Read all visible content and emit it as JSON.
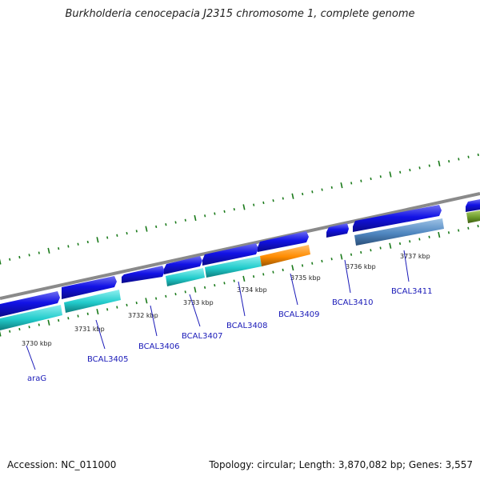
{
  "title": "Burkholderia cenocepacia J2315 chromosome 1, complete genome",
  "accession": "Accession: NC_011000",
  "summary": "Topology: circular; Length: 3,870,082 bp; Genes: 3,557",
  "colors": {
    "backbone": "#8a8a8a",
    "gene_forward": "#1010e0",
    "gene_cds": "#22cccc",
    "gene_highlight": "#ff8c00",
    "gene_alt": "#4f86c0",
    "gene_partial": "#6b9a2a",
    "tick": "#1a7a1a",
    "label": "#1a1ab8"
  },
  "scale_ticks": [
    {
      "label": "3730 kbp",
      "kbp": 3730
    },
    {
      "label": "3731 kbp",
      "kbp": 3731
    },
    {
      "label": "3732 kbp",
      "kbp": 3732
    },
    {
      "label": "3733 kbp",
      "kbp": 3733
    },
    {
      "label": "3734 kbp",
      "kbp": 3734
    },
    {
      "label": "3735 kbp",
      "kbp": 3735
    },
    {
      "label": "3736 kbp",
      "kbp": 3736
    },
    {
      "label": "3737 kbp",
      "kbp": 3737
    }
  ],
  "genes": [
    {
      "name": "araG"
    },
    {
      "name": "BCAL3405"
    },
    {
      "name": "BCAL3406"
    },
    {
      "name": "BCAL3407"
    },
    {
      "name": "BCAL3408"
    },
    {
      "name": "BCAL3409"
    },
    {
      "name": "BCAL3410"
    },
    {
      "name": "BCAL3411"
    }
  ]
}
